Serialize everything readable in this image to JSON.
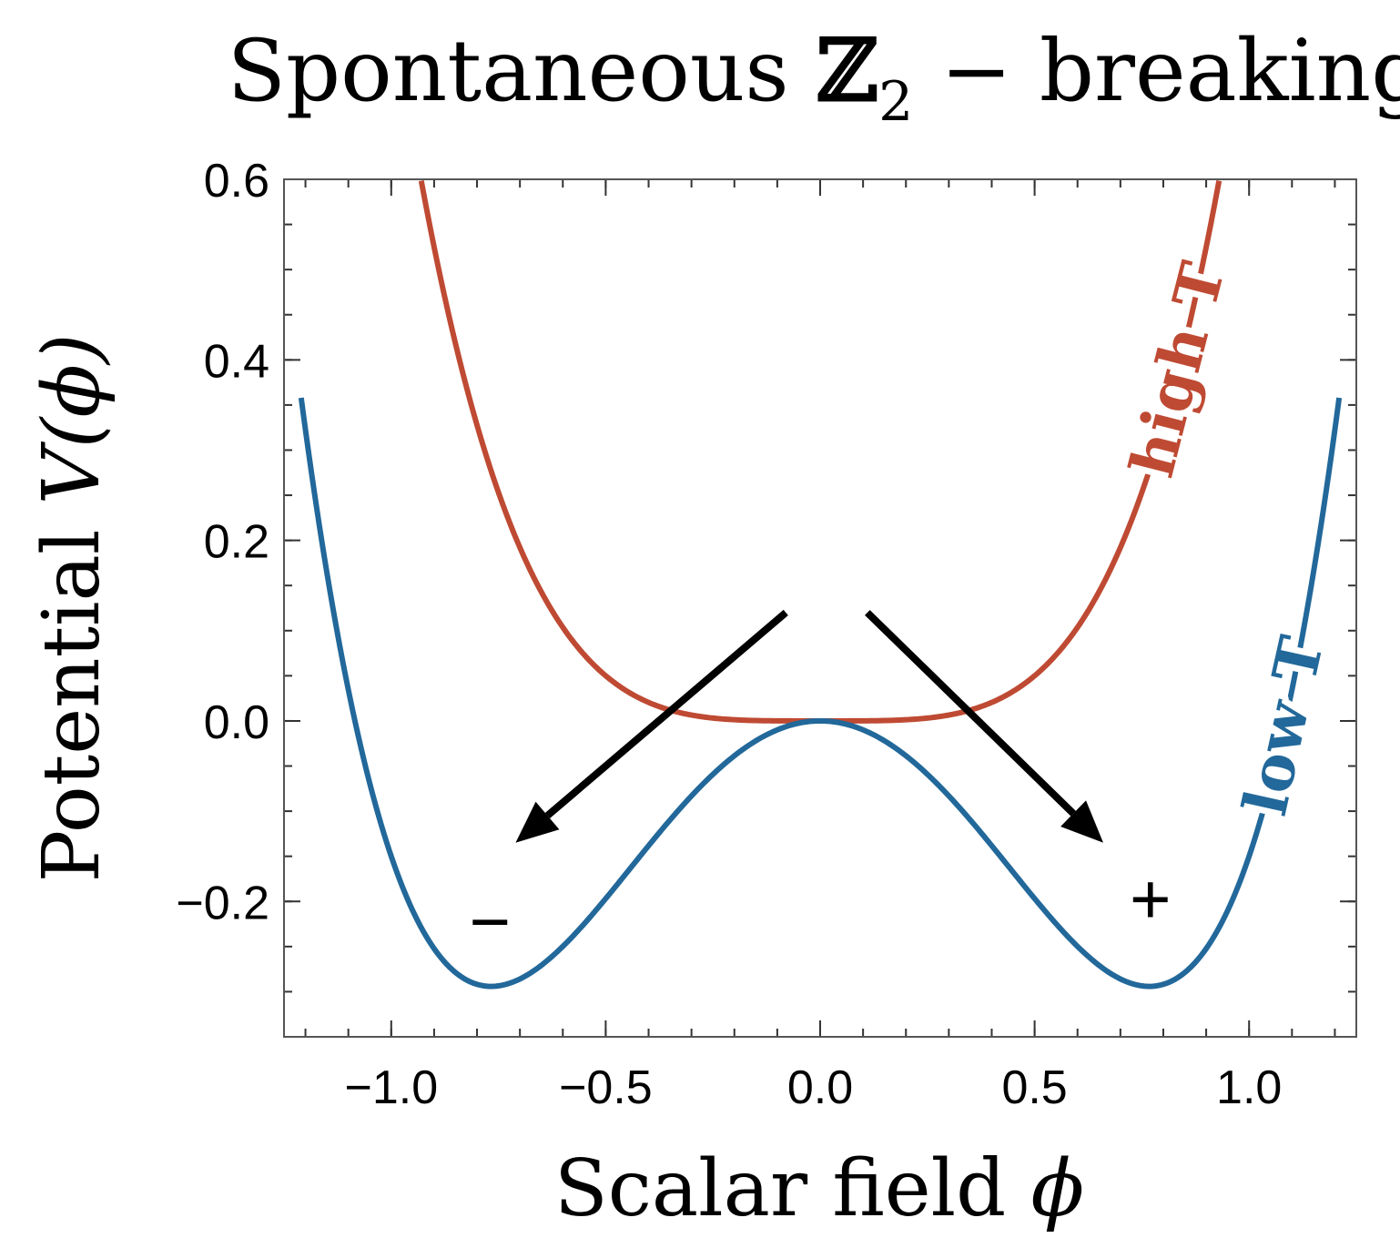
{
  "chart_data": {
    "type": "line",
    "title": {
      "text": "Spontaneous ",
      "symbol": "ℤ",
      "subscript": "2",
      "suffix": " − breaking"
    },
    "xlabel": {
      "text": "Scalar field ",
      "symbol": "ϕ"
    },
    "ylabel": {
      "text": "Potential ",
      "symbol": "V(ϕ)"
    },
    "xlim": [
      -1.25,
      1.25
    ],
    "ylim": [
      -0.35,
      0.6
    ],
    "xticks": [
      -1.0,
      -0.5,
      0.0,
      0.5,
      1.0
    ],
    "xtick_labels": [
      "−1.0",
      "−0.5",
      "0.0",
      "0.5",
      "1.0"
    ],
    "yticks": [
      -0.2,
      0.0,
      0.2,
      0.4,
      0.6
    ],
    "ytick_labels": [
      "−0.2",
      "0.0",
      "0.2",
      "0.4",
      "0.6"
    ],
    "x_minor_step": 0.1,
    "y_minor_step": 0.05,
    "grid": false,
    "series": [
      {
        "name": "high T",
        "color": "#bf4a33",
        "x_range": [
          -0.93,
          0.93
        ],
        "formula": "V = 0.8 * phi^4",
        "samples": [
          [
            -0.93,
            0.598
          ],
          [
            -0.8,
            0.328
          ],
          [
            -0.6,
            0.104
          ],
          [
            -0.4,
            0.02
          ],
          [
            -0.2,
            0.001
          ],
          [
            0.0,
            0.0
          ],
          [
            0.2,
            0.001
          ],
          [
            0.4,
            0.02
          ],
          [
            0.6,
            0.104
          ],
          [
            0.8,
            0.328
          ],
          [
            0.93,
            0.598
          ]
        ]
      },
      {
        "name": "low T",
        "color": "#22689a",
        "x_range": [
          -1.21,
          1.21
        ],
        "formula": "V = -phi^2 + 0.85 * phi^4",
        "samples": [
          [
            -1.21,
            0.28
          ],
          [
            -1.0,
            -0.15
          ],
          [
            -0.767,
            -0.294
          ],
          [
            -0.5,
            -0.197
          ],
          [
            -0.25,
            -0.059
          ],
          [
            0.0,
            0.0
          ],
          [
            0.25,
            -0.059
          ],
          [
            0.5,
            -0.197
          ],
          [
            0.767,
            -0.294
          ],
          [
            1.0,
            -0.15
          ],
          [
            1.21,
            0.28
          ]
        ]
      }
    ],
    "annotations": [
      {
        "text": "−",
        "x": -0.77,
        "y": -0.225
      },
      {
        "text": "+",
        "x": 0.77,
        "y": -0.2
      },
      {
        "type": "arrow",
        "from": [
          -0.08,
          0.12
        ],
        "to": [
          -0.71,
          -0.135
        ]
      },
      {
        "type": "arrow",
        "from": [
          0.11,
          0.12
        ],
        "to": [
          0.66,
          -0.135
        ]
      }
    ]
  }
}
